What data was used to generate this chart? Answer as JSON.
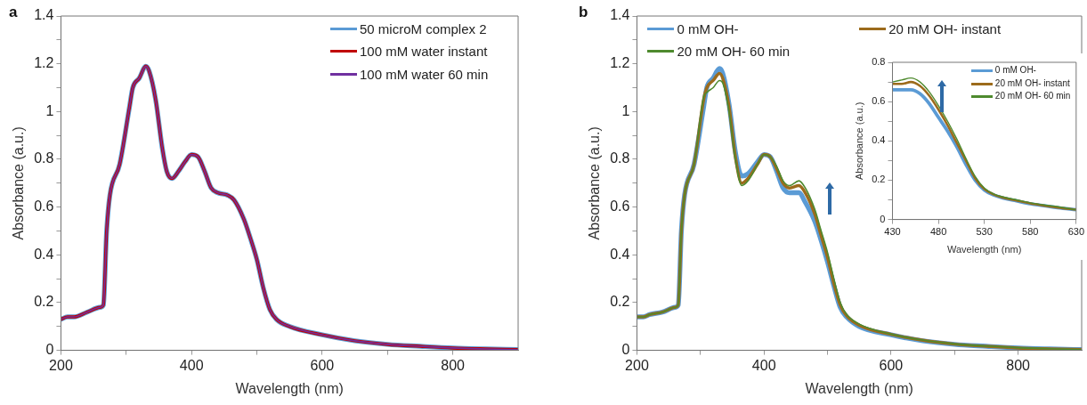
{
  "chart_data": [
    {
      "type": "line",
      "title": "a",
      "xlabel": "Wavelength (nm)",
      "ylabel": "Absorbance (a.u.)",
      "xlim": [
        200,
        900
      ],
      "ylim": [
        0,
        1.4
      ],
      "xticks": [
        200,
        {
          "value": 300,
          "label": null
        },
        400,
        {
          "value": 500,
          "label": null
        },
        600,
        {
          "value": 700,
          "label": null
        },
        800
      ],
      "yticks": [
        0,
        {
          "value": 0.1,
          "label": null
        },
        0.2,
        {
          "value": 0.3,
          "label": null
        },
        0.4,
        {
          "value": 0.5,
          "label": null
        },
        0.6,
        {
          "value": 0.7,
          "label": null
        },
        0.8,
        {
          "value": 0.9,
          "label": null
        },
        1,
        {
          "value": 1.1,
          "label": null
        },
        1.2,
        {
          "value": 1.3,
          "label": null
        },
        1.4
      ],
      "grid": false,
      "legend": "top right",
      "marker": "none",
      "line_style": "solid",
      "x": [
        200,
        210,
        220,
        240,
        260,
        265,
        270,
        275,
        290,
        305,
        310,
        320,
        330,
        335,
        345,
        355,
        362,
        370,
        380,
        390,
        400,
        410,
        420,
        430,
        440,
        455,
        465,
        480,
        490,
        500,
        510,
        520,
        530,
        550,
        600,
        650,
        700,
        750,
        800,
        850,
        900
      ],
      "series": [
        {
          "name": "50 microM complex 2",
          "color": "#5b9bd5",
          "values": [
            0.13,
            0.14,
            0.14,
            0.16,
            0.18,
            0.19,
            0.5,
            0.65,
            0.78,
            1.02,
            1.1,
            1.14,
            1.19,
            1.17,
            1.05,
            0.85,
            0.75,
            0.72,
            0.75,
            0.79,
            0.82,
            0.81,
            0.75,
            0.68,
            0.66,
            0.65,
            0.63,
            0.55,
            0.47,
            0.38,
            0.26,
            0.17,
            0.13,
            0.1,
            0.065,
            0.04,
            0.025,
            0.017,
            0.01,
            0.006,
            0.003
          ]
        },
        {
          "name": "100 mM water instant",
          "color": "#c00000",
          "values": [
            0.13,
            0.14,
            0.14,
            0.16,
            0.18,
            0.19,
            0.5,
            0.65,
            0.78,
            1.02,
            1.1,
            1.14,
            1.19,
            1.17,
            1.05,
            0.85,
            0.75,
            0.72,
            0.75,
            0.79,
            0.82,
            0.81,
            0.75,
            0.68,
            0.66,
            0.65,
            0.63,
            0.55,
            0.47,
            0.38,
            0.26,
            0.17,
            0.13,
            0.1,
            0.065,
            0.04,
            0.025,
            0.017,
            0.01,
            0.006,
            0.003
          ]
        },
        {
          "name": "100 mM water 60 min",
          "color": "#7030a0",
          "values": [
            0.13,
            0.14,
            0.14,
            0.16,
            0.18,
            0.19,
            0.5,
            0.65,
            0.78,
            1.02,
            1.1,
            1.14,
            1.19,
            1.17,
            1.05,
            0.85,
            0.75,
            0.72,
            0.75,
            0.79,
            0.82,
            0.81,
            0.75,
            0.68,
            0.66,
            0.65,
            0.63,
            0.55,
            0.47,
            0.38,
            0.26,
            0.17,
            0.13,
            0.1,
            0.065,
            0.04,
            0.025,
            0.017,
            0.01,
            0.006,
            0.003
          ]
        }
      ]
    },
    {
      "type": "line",
      "title": "b",
      "xlabel": "Wavelength (nm)",
      "ylabel": "Absorbance (a.u.)",
      "xlim": [
        200,
        900
      ],
      "ylim": [
        0,
        1.4
      ],
      "xticks": [
        200,
        {
          "value": 300,
          "label": null
        },
        400,
        {
          "value": 500,
          "label": null
        },
        600,
        {
          "value": 700,
          "label": null
        },
        800
      ],
      "yticks": [
        0,
        {
          "value": 0.1,
          "label": null
        },
        0.2,
        {
          "value": 0.3,
          "label": null
        },
        0.4,
        {
          "value": 0.5,
          "label": null
        },
        0.6,
        {
          "value": 0.7,
          "label": null
        },
        0.8,
        {
          "value": 0.9,
          "label": null
        },
        1,
        {
          "value": 1.1,
          "label": null
        },
        1.2,
        {
          "value": 1.3,
          "label": null
        },
        1.4
      ],
      "grid": false,
      "legend": "top",
      "marker": "none",
      "line_style": "solid",
      "x": [
        200,
        210,
        220,
        240,
        260,
        265,
        270,
        275,
        290,
        305,
        310,
        320,
        330,
        335,
        345,
        355,
        365,
        375,
        390,
        400,
        410,
        420,
        430,
        440,
        455,
        465,
        480,
        490,
        500,
        510,
        520,
        530,
        550,
        600,
        650,
        700,
        750,
        800,
        850,
        900
      ],
      "series": [
        {
          "name": "0 mM OH-",
          "color": "#5b9bd5",
          "values": [
            0.14,
            0.14,
            0.15,
            0.16,
            0.18,
            0.19,
            0.5,
            0.65,
            0.78,
            1.02,
            1.1,
            1.14,
            1.18,
            1.16,
            1.03,
            0.83,
            0.73,
            0.74,
            0.79,
            0.82,
            0.81,
            0.75,
            0.68,
            0.66,
            0.66,
            0.62,
            0.54,
            0.46,
            0.37,
            0.27,
            0.18,
            0.14,
            0.1,
            0.065,
            0.04,
            0.025,
            0.017,
            0.01,
            0.006,
            0.003
          ]
        },
        {
          "name": "20 mM OH- instant",
          "color": "#9c6b1c",
          "values": [
            0.14,
            0.14,
            0.15,
            0.16,
            0.18,
            0.19,
            0.5,
            0.65,
            0.78,
            1.05,
            1.1,
            1.13,
            1.16,
            1.14,
            1.02,
            0.81,
            0.7,
            0.72,
            0.78,
            0.82,
            0.81,
            0.76,
            0.7,
            0.68,
            0.69,
            0.66,
            0.57,
            0.48,
            0.39,
            0.28,
            0.19,
            0.145,
            0.105,
            0.067,
            0.042,
            0.026,
            0.017,
            0.01,
            0.006,
            0.003
          ]
        },
        {
          "name": "20 mM OH- 60 min",
          "color": "#4e8a2e",
          "values": [
            0.14,
            0.14,
            0.15,
            0.16,
            0.18,
            0.19,
            0.5,
            0.65,
            0.78,
            1.06,
            1.08,
            1.1,
            1.13,
            1.12,
            1.0,
            0.8,
            0.69,
            0.71,
            0.78,
            0.82,
            0.81,
            0.77,
            0.71,
            0.69,
            0.71,
            0.68,
            0.59,
            0.5,
            0.41,
            0.3,
            0.2,
            0.15,
            0.11,
            0.068,
            0.043,
            0.027,
            0.018,
            0.011,
            0.007,
            0.003
          ]
        }
      ]
    },
    {
      "type": "line",
      "xlabel": "Wavelength (nm)",
      "ylabel": "Absorbance (a.u.)",
      "xlim": [
        430,
        630
      ],
      "ylim": [
        0,
        0.8
      ],
      "xticks": [
        430,
        480,
        530,
        580,
        630
      ],
      "yticks": [
        0,
        {
          "value": 0.1,
          "label": null
        },
        0.2,
        {
          "value": 0.3,
          "label": null
        },
        0.4,
        {
          "value": 0.5,
          "label": null
        },
        0.6,
        {
          "value": 0.7,
          "label": null
        },
        0.8
      ],
      "grid": false,
      "legend": "top right",
      "marker": "none",
      "line_style": "solid",
      "x": [
        430,
        440,
        450,
        460,
        470,
        480,
        490,
        500,
        510,
        520,
        530,
        540,
        550,
        565,
        580,
        595,
        610,
        630
      ],
      "series": [
        {
          "name": "0 mM OH-",
          "color": "#5b9bd5",
          "values": [
            0.66,
            0.66,
            0.66,
            0.64,
            0.59,
            0.52,
            0.45,
            0.37,
            0.28,
            0.2,
            0.15,
            0.125,
            0.11,
            0.095,
            0.08,
            0.07,
            0.06,
            0.05
          ]
        },
        {
          "name": "20 mM OH- instant",
          "color": "#9c6b1c",
          "values": [
            0.69,
            0.69,
            0.7,
            0.68,
            0.63,
            0.56,
            0.48,
            0.39,
            0.3,
            0.21,
            0.155,
            0.128,
            0.112,
            0.097,
            0.082,
            0.071,
            0.061,
            0.05
          ]
        },
        {
          "name": "20 mM OH- 60 min",
          "color": "#4e8a2e",
          "values": [
            0.7,
            0.71,
            0.72,
            0.7,
            0.65,
            0.58,
            0.5,
            0.41,
            0.31,
            0.22,
            0.16,
            0.13,
            0.115,
            0.1,
            0.085,
            0.074,
            0.065,
            0.05
          ]
        }
      ]
    }
  ]
}
